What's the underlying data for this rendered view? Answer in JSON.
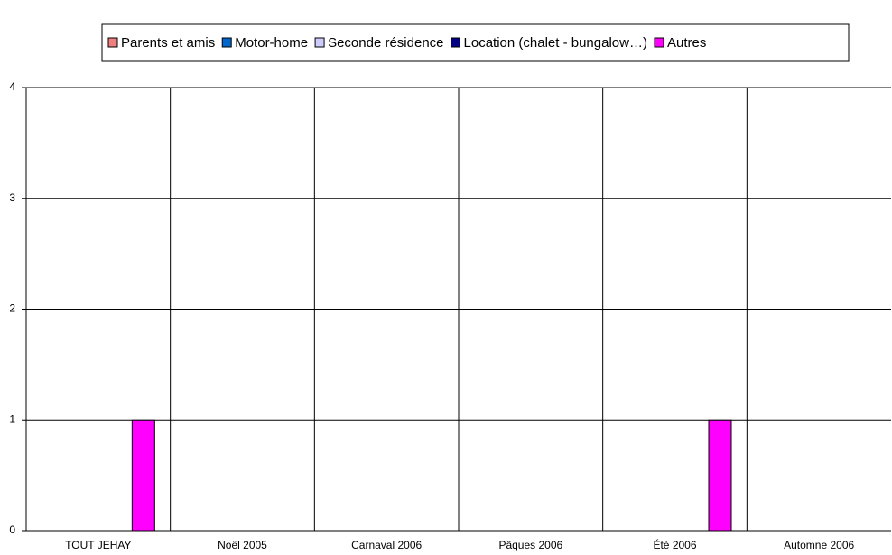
{
  "chart_data": {
    "type": "bar",
    "categories": [
      "TOUT JEHAY",
      "Noël 2005",
      "Carnaval 2006",
      "Pâques 2006",
      "Été 2006",
      "Automne 2006"
    ],
    "series": [
      {
        "name": "Parents et amis",
        "color": "#f08080",
        "values": [
          0,
          0,
          0,
          0,
          0,
          0
        ]
      },
      {
        "name": "Motor-home",
        "color": "#0066cc",
        "values": [
          0,
          0,
          0,
          0,
          0,
          0
        ]
      },
      {
        "name": "Seconde résidence",
        "color": "#ccccff",
        "values": [
          0,
          0,
          0,
          0,
          0,
          0
        ]
      },
      {
        "name": "Location (chalet - bungalow…)",
        "color": "#000080",
        "values": [
          0,
          0,
          0,
          0,
          0,
          0
        ]
      },
      {
        "name": "Autres",
        "color": "#ff00ff",
        "values": [
          1,
          0,
          0,
          0,
          1,
          0
        ]
      }
    ],
    "ylim": [
      0,
      4
    ],
    "yticks": [
      0,
      1,
      2,
      3,
      4
    ],
    "grid": true,
    "legend": "top"
  }
}
